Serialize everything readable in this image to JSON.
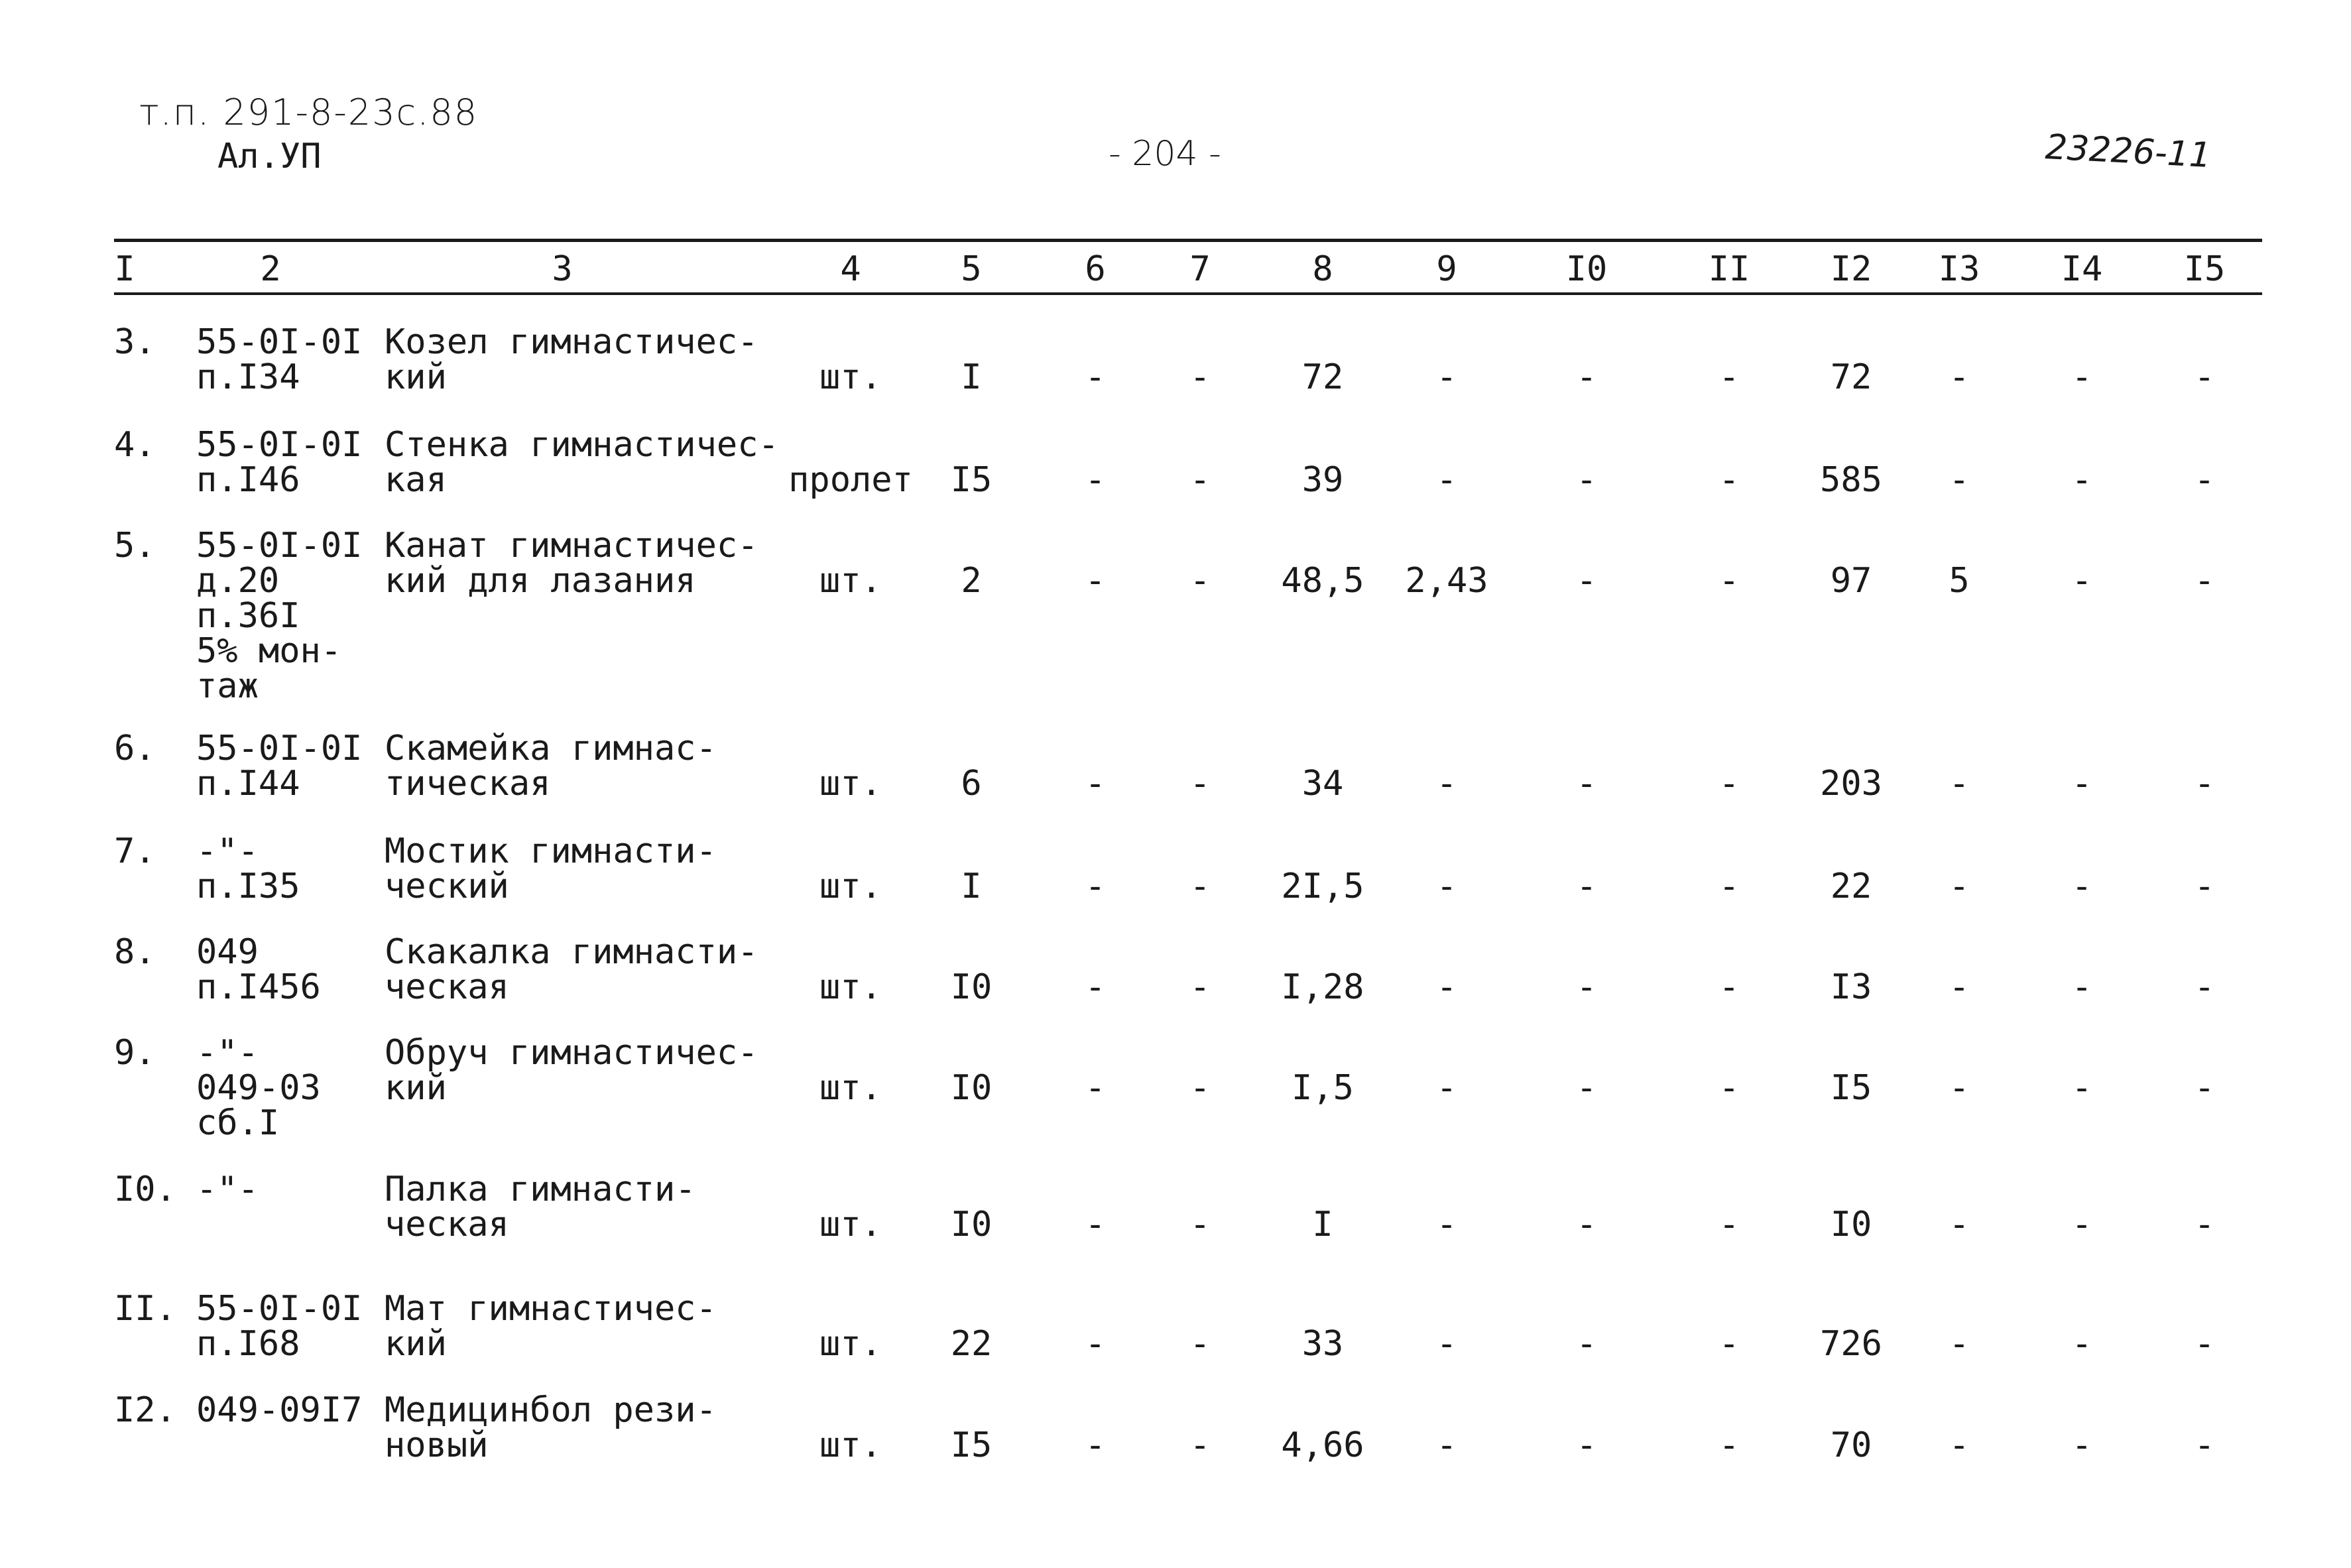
{
  "header": {
    "doc_code": "т.п. 291-8-23с.88",
    "album": "Ал.УП",
    "page_number": "- 204 -",
    "inventory_number": "23226-11"
  },
  "table": {
    "column_numbers": [
      "I",
      "2",
      "3",
      "4",
      "5",
      "6",
      "7",
      "8",
      "9",
      "I0",
      "II",
      "I2",
      "I3",
      "I4",
      "I5"
    ],
    "rows": [
      {
        "no": "3.",
        "code": [
          "55-0I-0I",
          "п.I34"
        ],
        "name": [
          "Козел гимнастичес-",
          "кий"
        ],
        "unit": "шт.",
        "qty": "I",
        "c6": "-",
        "c7": "-",
        "c8": "72",
        "c9": "-",
        "c10": "-",
        "c11": "-",
        "c12": "72",
        "c13": "-",
        "c14": "-",
        "c15": "-"
      },
      {
        "no": "4.",
        "code": [
          "55-0I-0I",
          "п.I46"
        ],
        "name": [
          "Стенка гимнастичес-",
          "кая"
        ],
        "unit": "пролет",
        "qty": "I5",
        "c6": "-",
        "c7": "-",
        "c8": "39",
        "c9": "-",
        "c10": "-",
        "c11": "-",
        "c12": "585",
        "c13": "-",
        "c14": "-",
        "c15": "-"
      },
      {
        "no": "5.",
        "code": [
          "55-0I-0I",
          "д.20",
          "п.36I",
          "5% мон-",
          "таж"
        ],
        "name": [
          "Канат гимнастичес-",
          "кий для лазания"
        ],
        "unit": "шт.",
        "qty": "2",
        "c6": "-",
        "c7": "-",
        "c8": "48,5",
        "c9": "2,43",
        "c10": "-",
        "c11": "-",
        "c12": "97",
        "c13": "5",
        "c14": "-",
        "c15": "-"
      },
      {
        "no": "6.",
        "code": [
          "55-0I-0I",
          "п.I44"
        ],
        "name": [
          "Скамейка гимнас-",
          "тическая"
        ],
        "unit": "шт.",
        "qty": "6",
        "c6": "-",
        "c7": "-",
        "c8": "34",
        "c9": "-",
        "c10": "-",
        "c11": "-",
        "c12": "203",
        "c13": "-",
        "c14": "-",
        "c15": "-"
      },
      {
        "no": "7.",
        "code": [
          "-\"-",
          "п.I35"
        ],
        "name": [
          "Мостик гимнасти-",
          "ческий"
        ],
        "unit": "шт.",
        "qty": "I",
        "c6": "-",
        "c7": "-",
        "c8": "2I,5",
        "c9": "-",
        "c10": "-",
        "c11": "-",
        "c12": "22",
        "c13": "-",
        "c14": "-",
        "c15": "-"
      },
      {
        "no": "8.",
        "code": [
          "049",
          "п.I456"
        ],
        "name": [
          "Скакалка гимнасти-",
          "ческая"
        ],
        "unit": "шт.",
        "qty": "I0",
        "c6": "-",
        "c7": "-",
        "c8": "I,28",
        "c9": "-",
        "c10": "-",
        "c11": "-",
        "c12": "I3",
        "c13": "-",
        "c14": "-",
        "c15": "-"
      },
      {
        "no": "9.",
        "code": [
          "-\"-",
          "049-03",
          "сб.I"
        ],
        "name": [
          "Обруч гимнастичес-",
          "кий"
        ],
        "unit": "шт.",
        "qty": "I0",
        "c6": "-",
        "c7": "-",
        "c8": "I,5",
        "c9": "-",
        "c10": "-",
        "c11": "-",
        "c12": "I5",
        "c13": "-",
        "c14": "-",
        "c15": "-"
      },
      {
        "no": "I0.",
        "code": [
          "-\"-"
        ],
        "name": [
          "Палка гимнасти-",
          "ческая"
        ],
        "unit": "шт.",
        "qty": "I0",
        "c6": "-",
        "c7": "-",
        "c8": "I",
        "c9": "-",
        "c10": "-",
        "c11": "-",
        "c12": "I0",
        "c13": "-",
        "c14": "-",
        "c15": "-"
      },
      {
        "no": "II.",
        "code": [
          "55-0I-0I",
          "п.I68"
        ],
        "name": [
          "Мат гимнастичес-",
          "кий"
        ],
        "unit": "шт.",
        "qty": "22",
        "c6": "-",
        "c7": "-",
        "c8": "33",
        "c9": "-",
        "c10": "-",
        "c11": "-",
        "c12": "726",
        "c13": "-",
        "c14": "-",
        "c15": "-"
      },
      {
        "no": "I2.",
        "code": [
          "049-09I7"
        ],
        "name": [
          "Медицинбол рези-",
          "новый"
        ],
        "unit": "шт.",
        "qty": "I5",
        "c6": "-",
        "c7": "-",
        "c8": "4,66",
        "c9": "-",
        "c10": "-",
        "c11": "-",
        "c12": "70",
        "c13": "-",
        "c14": "-",
        "c15": "-"
      }
    ]
  }
}
